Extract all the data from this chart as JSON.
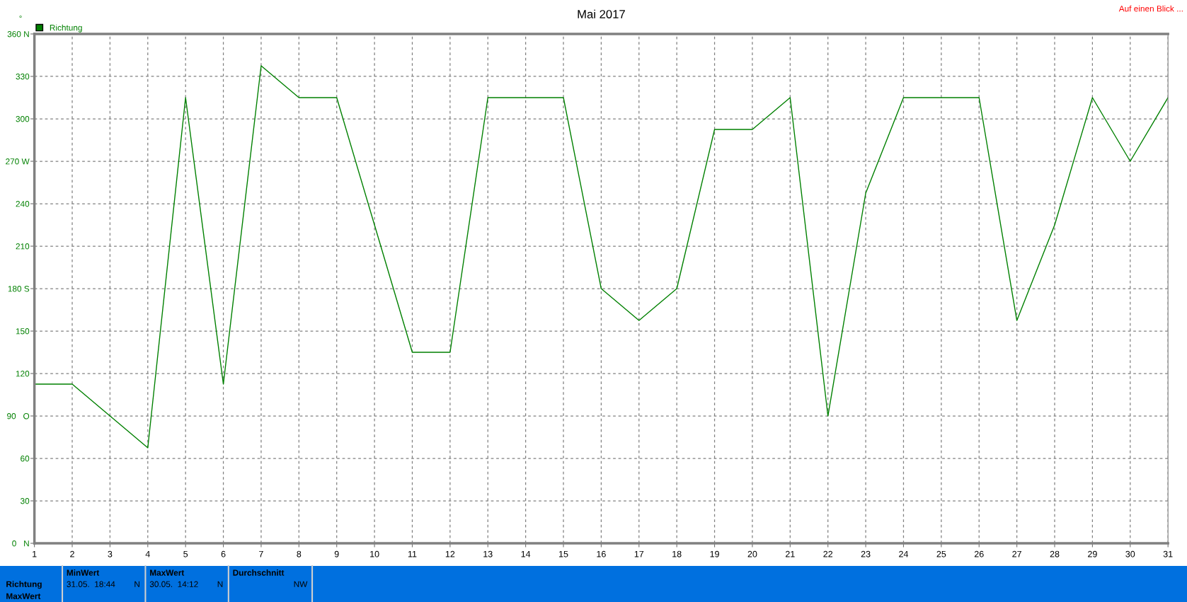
{
  "chart_data": {
    "type": "line",
    "title": "Mai 2017",
    "ylabel": "°",
    "x": [
      1,
      2,
      3,
      4,
      5,
      6,
      7,
      8,
      9,
      10,
      11,
      12,
      13,
      14,
      15,
      16,
      17,
      18,
      19,
      20,
      21,
      22,
      23,
      24,
      25,
      26,
      27,
      28,
      29,
      30,
      31
    ],
    "series": [
      {
        "name": "Richtung",
        "color": "#008000",
        "values": [
          112.5,
          112.5,
          90,
          67.5,
          315,
          112.5,
          337.5,
          315,
          315,
          225,
          135,
          135,
          315,
          315,
          315,
          180,
          157.5,
          180,
          292.5,
          292.5,
          315,
          90,
          247.5,
          315,
          315,
          315,
          157.5,
          225,
          315,
          270,
          315
        ]
      }
    ],
    "xlim": [
      1,
      31
    ],
    "xticks": [
      1,
      2,
      3,
      4,
      5,
      6,
      7,
      8,
      9,
      10,
      11,
      12,
      13,
      14,
      15,
      16,
      17,
      18,
      19,
      20,
      21,
      22,
      23,
      24,
      25,
      26,
      27,
      28,
      29,
      30,
      31
    ],
    "ylim": [
      0,
      360
    ],
    "yticks": [
      {
        "value": 0,
        "label": "0   N"
      },
      30,
      60,
      {
        "value": 90,
        "label": "90   O"
      },
      120,
      150,
      {
        "value": 180,
        "label": "180 S"
      },
      210,
      240,
      {
        "value": 270,
        "label": "270 W"
      },
      300,
      330,
      {
        "value": 360,
        "label": "360 N"
      }
    ],
    "grid": true,
    "legend": "top left",
    "marker": "none",
    "line_style": "solid",
    "annotations": [
      "Auf einen Blick ...",
      "Richtung",
      "MaxWert",
      "MinWert",
      "31.05.  18:44",
      "N",
      "MaxWert",
      "30.05.  14:12",
      "N",
      "Durchschnitt",
      "NW"
    ]
  }
}
